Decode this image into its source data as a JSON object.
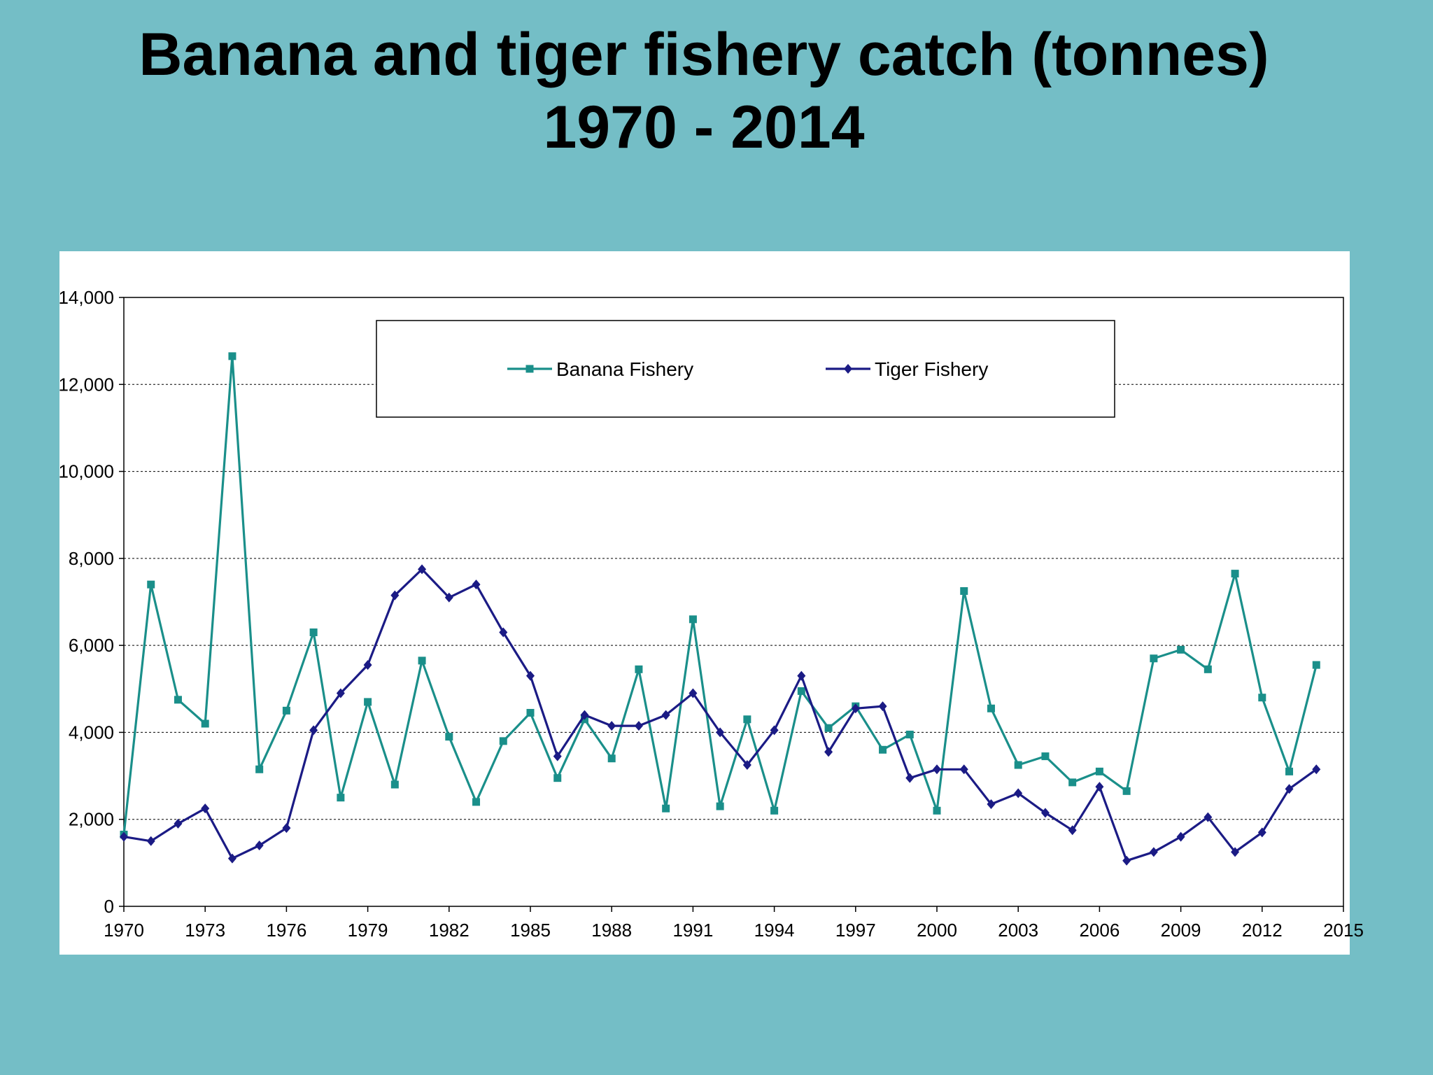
{
  "title": {
    "line1": "Banana and tiger fishery catch (tonnes)",
    "line2": "1970 - 2014"
  },
  "chart_data": {
    "type": "line",
    "title": "Banana and tiger fishery catch (tonnes) 1970 - 2014",
    "xlabel": "",
    "ylabel": "",
    "x": [
      1970,
      1971,
      1972,
      1973,
      1974,
      1975,
      1976,
      1977,
      1978,
      1979,
      1980,
      1981,
      1982,
      1983,
      1984,
      1985,
      1986,
      1987,
      1988,
      1989,
      1990,
      1991,
      1992,
      1993,
      1994,
      1995,
      1996,
      1997,
      1998,
      1999,
      2000,
      2001,
      2002,
      2003,
      2004,
      2005,
      2006,
      2007,
      2008,
      2009,
      2010,
      2011,
      2012,
      2013,
      2014
    ],
    "xlim": [
      1970,
      2015
    ],
    "ylim": [
      0,
      14000
    ],
    "x_ticks": [
      "1970",
      "1973",
      "1976",
      "1979",
      "1982",
      "1985",
      "1988",
      "1991",
      "1994",
      "1997",
      "2000",
      "2003",
      "2006",
      "2009",
      "2012",
      "2015"
    ],
    "y_ticks": [
      "0",
      "2,000",
      "4,000",
      "6,000",
      "8,000",
      "10,000",
      "12,000",
      "14,000"
    ],
    "grid": "horizontal-dashed",
    "legend_position": "top-center",
    "series": [
      {
        "name": "Banana Fishery",
        "color": "#1a8f8a",
        "marker": "square",
        "values": [
          1650,
          7400,
          4750,
          4200,
          12650,
          3150,
          4500,
          6300,
          2500,
          4700,
          2800,
          5650,
          3900,
          2400,
          3800,
          4450,
          2950,
          4300,
          3400,
          5450,
          2250,
          6600,
          2300,
          4300,
          2200,
          4950,
          4100,
          4600,
          3600,
          3950,
          2200,
          7250,
          4550,
          3250,
          3450,
          2850,
          3100,
          2650,
          5700,
          5900,
          5450,
          7650,
          4800,
          3100,
          5550
        ]
      },
      {
        "name": "Tiger Fishery",
        "color": "#1b1b85",
        "marker": "diamond",
        "values": [
          1600,
          1500,
          1900,
          2250,
          1100,
          1400,
          1800,
          4050,
          4900,
          5550,
          7150,
          7750,
          7100,
          7400,
          6300,
          5300,
          3450,
          4400,
          4150,
          4150,
          4400,
          4900,
          4000,
          3250,
          4050,
          5300,
          3550,
          4550,
          4600,
          2950,
          3150,
          3150,
          2350,
          2600,
          2150,
          1750,
          2750,
          1050,
          1250,
          1600,
          2050,
          1250,
          1700,
          2700,
          3150
        ]
      }
    ]
  }
}
